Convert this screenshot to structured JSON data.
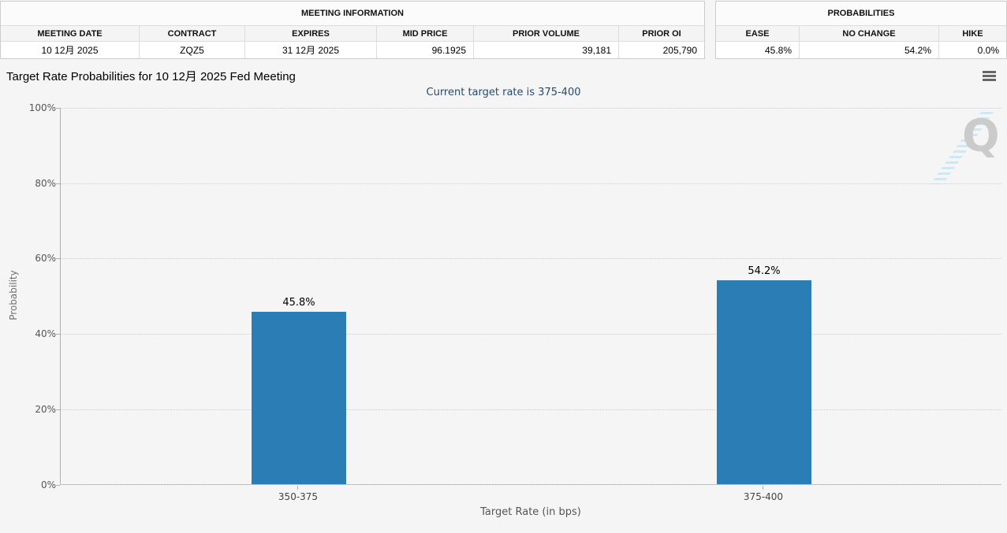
{
  "header": {
    "meeting": {
      "title": "MEETING INFORMATION",
      "columns": [
        "MEETING DATE",
        "CONTRACT",
        "EXPIRES",
        "MID PRICE",
        "PRIOR VOLUME",
        "PRIOR OI"
      ],
      "values": [
        "10 12月 2025",
        "ZQZ5",
        "31 12月 2025",
        "96.1925",
        "39,181",
        "205,790"
      ]
    },
    "probabilities": {
      "title": "PROBABILITIES",
      "columns": [
        "EASE",
        "NO CHANGE",
        "HIKE"
      ],
      "values": [
        "45.8%",
        "54.2%",
        "0.0%"
      ]
    }
  },
  "chart": {
    "title": "Target Rate Probabilities for 10 12月 2025 Fed Meeting",
    "subtitle": "Current target rate is 375-400",
    "menu_icon": "hamburger-menu-icon",
    "watermark_letter": "Q",
    "y_axis": {
      "label": "Probability",
      "ticks": [
        "100%",
        "80%",
        "60%",
        "40%",
        "20%",
        "0%"
      ]
    },
    "x_axis": {
      "label": "Target Rate (in bps)",
      "categories": [
        "350-375",
        "375-400"
      ]
    },
    "value_labels": [
      "45.8%",
      "54.2%"
    ],
    "colors": {
      "bar": "#2b7eb5",
      "subtitle_text": "#274b6d",
      "page_background": "#f5f5f5"
    }
  },
  "chart_data": {
    "type": "bar",
    "title": "Target Rate Probabilities for 10 12月 2025 Fed Meeting",
    "subtitle": "Current target rate is 375-400",
    "categories": [
      "350-375",
      "375-400"
    ],
    "values": [
      45.8,
      54.2
    ],
    "value_labels": [
      "45.8%",
      "54.2%"
    ],
    "xlabel": "Target Rate (in bps)",
    "ylabel": "Probability",
    "ylim": [
      0,
      100
    ],
    "yticks": [
      0,
      20,
      40,
      60,
      80,
      100
    ],
    "ytick_format": "percent",
    "grid": "horizontal-dotted",
    "legend": "none",
    "bar_color": "#2b7eb5"
  }
}
